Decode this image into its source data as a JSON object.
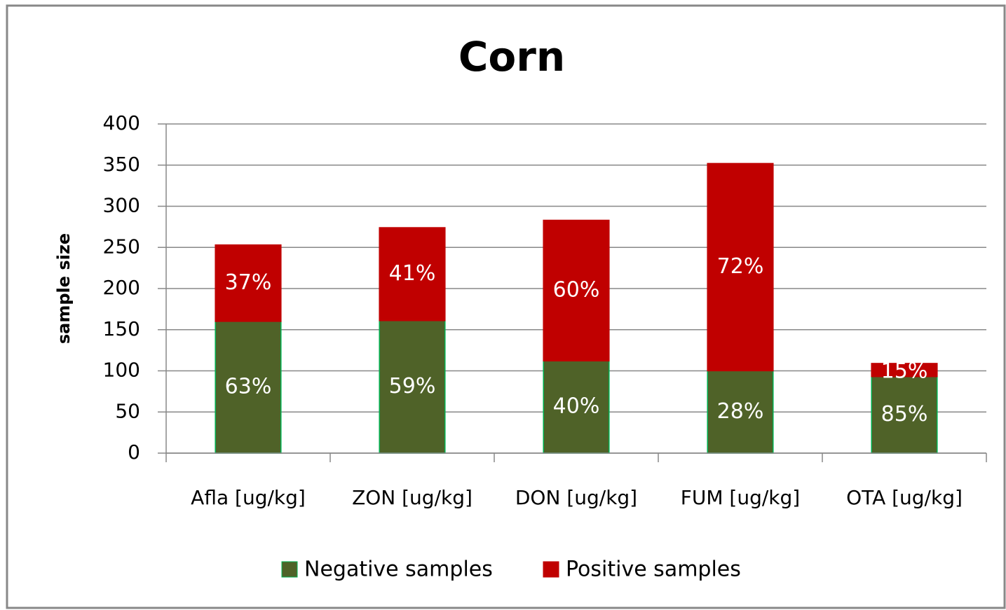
{
  "chart_data": {
    "type": "stacked_bar",
    "title": "Corn",
    "y_label": "sample size",
    "categories": [
      "Afla [ug/kg]",
      "ZON [ug/kg]",
      "DON [ug/kg]",
      "FUM [ug/kg]",
      "OTA [ug/kg]"
    ],
    "series": [
      {
        "name": "Negative samples",
        "color": "#4f6228",
        "values": [
          160,
          161,
          112,
          100,
          93
        ],
        "value_labels": [
          "63%",
          "59%",
          "40%",
          "28%",
          "85%"
        ]
      },
      {
        "name": "Positive samples",
        "color": "#c00000",
        "values": [
          93,
          113,
          171,
          252,
          16
        ],
        "value_labels": [
          "37%",
          "41%",
          "60%",
          "72%",
          "15%"
        ]
      }
    ],
    "ylim": [
      0,
      400
    ],
    "yticks": [
      0,
      50,
      100,
      150,
      200,
      250,
      300,
      350,
      400
    ],
    "grid": true,
    "legend": "bottom"
  }
}
